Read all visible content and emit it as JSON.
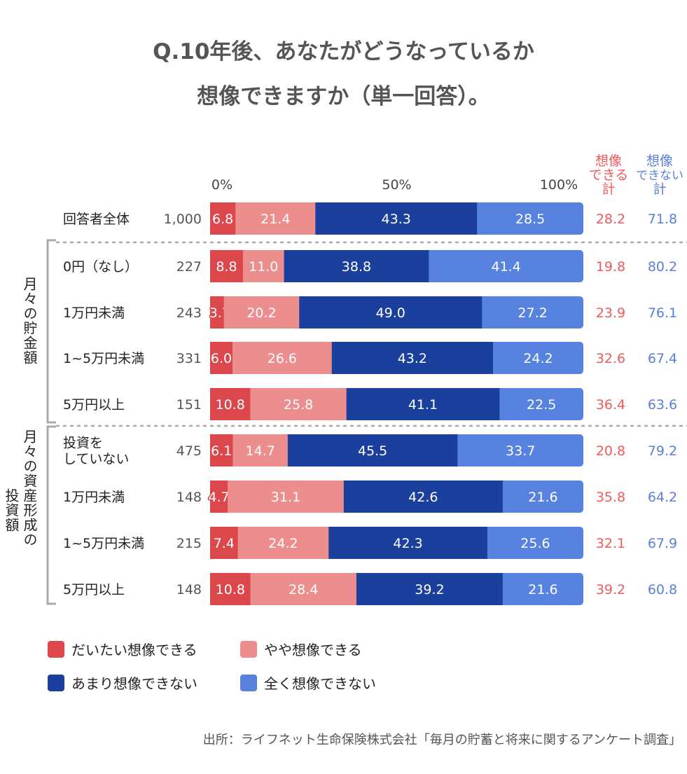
{
  "title_line1": "Q.10年後、あなたがどうなっているか",
  "title_line2": "想像できますか（単一回答）。",
  "chart_data": {
    "type": "bar",
    "orientation": "horizontal",
    "stacked": true,
    "xlim": [
      0,
      100
    ],
    "x_ticks": [
      "0%",
      "50%",
      "100%"
    ],
    "categories": [
      "回答者全体",
      "0円（なし）",
      "1万円未満",
      "1~5万円未満",
      "5万円以上",
      "投資を\nしていない",
      "1万円未満",
      "1~5万円未満",
      "5万円以上"
    ],
    "n": [
      "1,000",
      "227",
      "243",
      "331",
      "151",
      "475",
      "148",
      "215",
      "148"
    ],
    "groups": [
      {
        "label_col1": "月々の貯金額",
        "label_col2": "",
        "rows": [
          1,
          2,
          3,
          4
        ]
      },
      {
        "label_col1": "月々の資産形成の",
        "label_col2": "投資額",
        "rows": [
          5,
          6,
          7,
          8
        ]
      }
    ],
    "series": [
      {
        "name": "だいたい想像できる",
        "color": "#dc474c",
        "values": [
          6.8,
          8.8,
          3.7,
          6.0,
          10.8,
          6.1,
          4.7,
          7.4,
          10.8
        ]
      },
      {
        "name": "やや想像できる",
        "color": "#ec8e8e",
        "values": [
          21.4,
          11.0,
          20.2,
          26.6,
          25.8,
          14.7,
          31.1,
          24.2,
          28.4
        ]
      },
      {
        "name": "あまり想像できない",
        "color": "#1b3f9c",
        "values": [
          43.3,
          38.8,
          49.0,
          43.2,
          41.1,
          45.5,
          42.6,
          42.3,
          39.2
        ]
      },
      {
        "name": "全く想像できない",
        "color": "#5782e0",
        "values": [
          28.5,
          41.4,
          27.2,
          24.2,
          22.5,
          33.7,
          21.6,
          25.6,
          21.6
        ]
      }
    ],
    "totals": [
      {
        "header": [
          "想像",
          "できる",
          "計"
        ],
        "color": "#f05a5a",
        "values": [
          "28.2",
          "19.8",
          "23.9",
          "32.6",
          "36.4",
          "20.8",
          "35.8",
          "32.1",
          "39.2"
        ]
      },
      {
        "header": [
          "想像",
          "できない",
          "計"
        ],
        "color": "#5a7fd8",
        "values": [
          "71.8",
          "80.2",
          "76.1",
          "67.4",
          "63.6",
          "79.2",
          "64.2",
          "67.9",
          "60.8"
        ]
      }
    ],
    "legend_position": "bottom"
  },
  "source": "出所：ライフネット生命保険株式会社「毎月の貯蓄と将来に関するアンケート調査」"
}
